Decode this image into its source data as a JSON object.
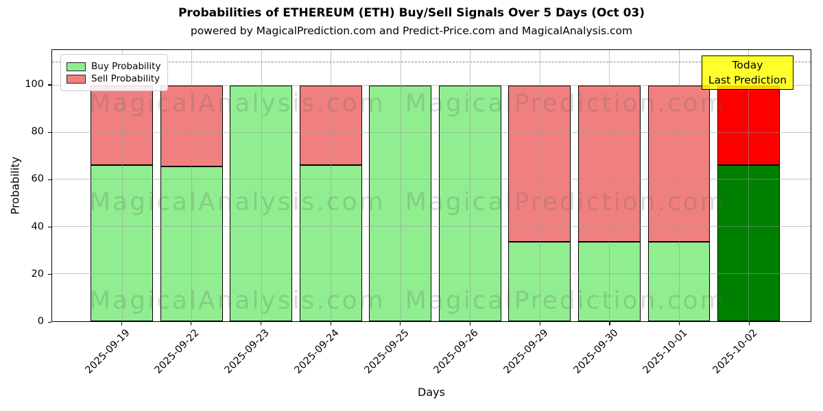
{
  "chart_data": {
    "type": "bar",
    "stacked": true,
    "title": "Probabilities of ETHEREUM (ETH) Buy/Sell Signals Over 5 Days (Oct 03)",
    "subtitle": "powered by MagicalPrediction.com and Predict-Price.com and MagicalAnalysis.com",
    "xlabel": "Days",
    "ylabel": "Probability",
    "ylim": [
      0,
      115
    ],
    "yticks": [
      0,
      20,
      40,
      60,
      80,
      100
    ],
    "grid": true,
    "legend_position": "upper-left",
    "categories": [
      "2025-09-19",
      "2025-09-22",
      "2025-09-23",
      "2025-09-24",
      "2025-09-25",
      "2025-09-26",
      "2025-09-29",
      "2025-09-30",
      "2025-10-01",
      "2025-10-02"
    ],
    "series": [
      {
        "name": "Buy Probability",
        "values": [
          66.3,
          65.6,
          100,
          66.3,
          100,
          100,
          33.7,
          33.7,
          33.7,
          66.3
        ]
      },
      {
        "name": "Sell Probability",
        "values": [
          33.7,
          34.4,
          0,
          33.7,
          0,
          0,
          66.3,
          66.3,
          66.3,
          33.7
        ]
      }
    ],
    "today_index": 9,
    "dashed_reference_line_y": 110,
    "annotation": {
      "line1": "Today",
      "line2": "Last Prediction"
    },
    "watermarks": [
      "MagicalAnalysis.com",
      "MagicalPrediction.com"
    ]
  },
  "colors": {
    "buy_normal": "#90EE90",
    "sell_normal": "#F08080",
    "buy_today": "#008000",
    "sell_today": "#FF0000",
    "annotation_bg": "#FFFF00",
    "bar_edge": "#000000",
    "grid": "#B0B0B0",
    "dashed_line": "#7F7F7F"
  }
}
